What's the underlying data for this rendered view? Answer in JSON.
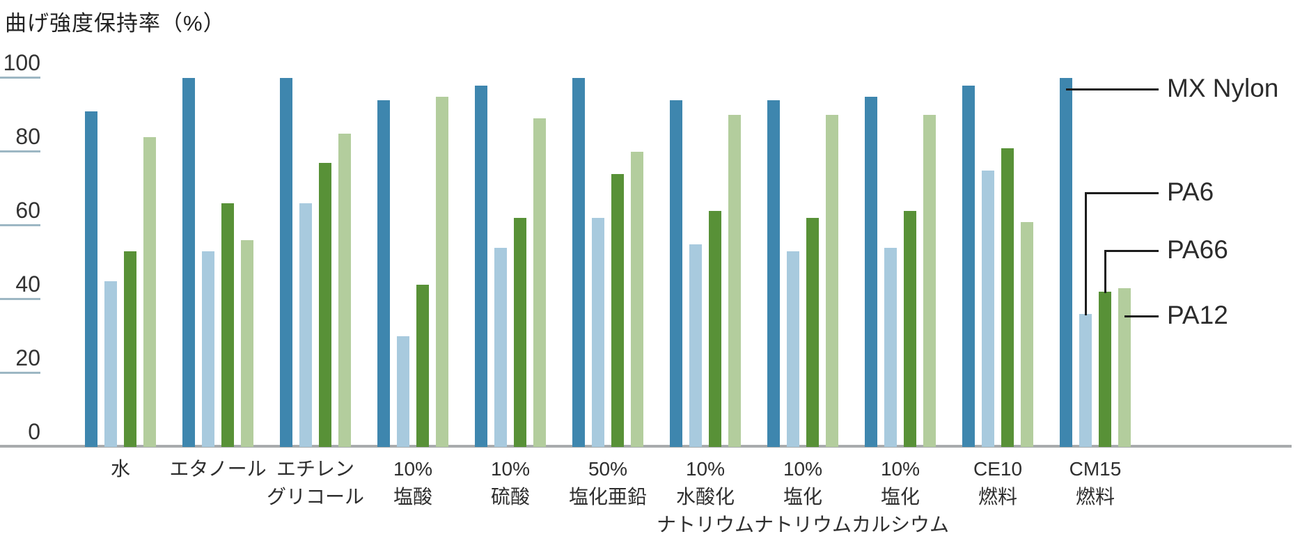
{
  "title": "曲げ強度保持率（%）",
  "colors": {
    "mx_nylon": "#3e86ae",
    "pa6": "#a8cade",
    "pa66": "#589137",
    "pa12": "#b3cd9d",
    "axis_line": "#a8abad",
    "tick_line": "#9db7c4",
    "text": "#333333",
    "leader_line": "#1c1c1c"
  },
  "y_axis": {
    "ticks": [
      100,
      80,
      60,
      40,
      20,
      0
    ],
    "min": 0,
    "max": 100
  },
  "legend": [
    {
      "label": "MX Nylon"
    },
    {
      "label": "PA6"
    },
    {
      "label": "PA66"
    },
    {
      "label": "PA12"
    }
  ],
  "chart_data": {
    "type": "bar",
    "title": "曲げ強度保持率（%）",
    "ylabel": "曲げ強度保持率（%）",
    "xlabel": "",
    "ylim": [
      0,
      100
    ],
    "grid": false,
    "legend_position": "right-callout",
    "categories": [
      "水",
      "エタノール",
      "エチレン\nグリコール",
      "10%\n塩酸",
      "10%\n硫酸",
      "50%\n塩化亜鉛",
      "10%\n水酸化\nナトリウム",
      "10%\n塩化\nナトリウム",
      "10%\n塩化\nカルシウム",
      "CE10\n燃料",
      "CM15\n燃料"
    ],
    "series": [
      {
        "name": "MX Nylon",
        "color": "#3e86ae",
        "values": [
          91,
          100,
          100,
          94,
          98,
          100,
          94,
          94,
          95,
          98,
          100
        ]
      },
      {
        "name": "PA6",
        "color": "#a8cade",
        "values": [
          45,
          53,
          66,
          30,
          54,
          62,
          55,
          53,
          54,
          75,
          36
        ]
      },
      {
        "name": "PA66",
        "color": "#589137",
        "values": [
          53,
          66,
          77,
          44,
          62,
          74,
          64,
          62,
          64,
          81,
          42
        ]
      },
      {
        "name": "PA12",
        "color": "#b3cd9d",
        "values": [
          84,
          56,
          85,
          95,
          89,
          80,
          90,
          90,
          90,
          61,
          43
        ]
      }
    ]
  }
}
